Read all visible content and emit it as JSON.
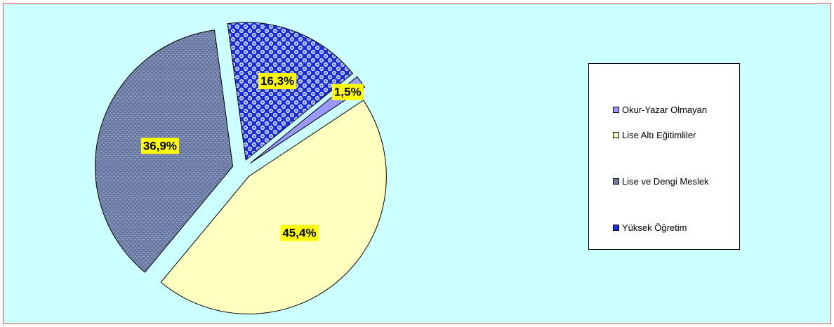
{
  "chart_data": {
    "type": "pie",
    "categories": [
      "Okur-Yazar Olmayan",
      "Lise Altı Eğitimliler",
      "Lise ve Dengi Meslek",
      "Yüksek Öğretim"
    ],
    "values": [
      1.5,
      45.4,
      36.9,
      16.3
    ],
    "value_labels": [
      "1,5%",
      "45,4%",
      "36,9%",
      "16,3%"
    ],
    "exploded": true,
    "legend_position": "right",
    "colors": {
      "okur_yazar": "#9999ff",
      "lise_alti": "#ffffc0",
      "lise_dengi": "#6f7fa8",
      "yuksek": "#1a2ee0",
      "label_background": "#ffff00",
      "plot_background": "#ccffff",
      "frame_border": "#e05050"
    },
    "patterns": [
      "plain",
      "plain",
      "textured",
      "checkered-dots"
    ]
  },
  "legend": {
    "items": [
      {
        "label": "Okur-Yazar Olmayan",
        "icon": "square-swatch-lavender"
      },
      {
        "label": "Lise Altı Eğitimliler",
        "icon": "square-swatch-cream"
      },
      {
        "label": "Lise ve Dengi Meslek",
        "icon": "square-swatch-blue-gray"
      },
      {
        "label": "Yüksek Öğretim",
        "icon": "square-swatch-blue-checkered"
      }
    ]
  }
}
